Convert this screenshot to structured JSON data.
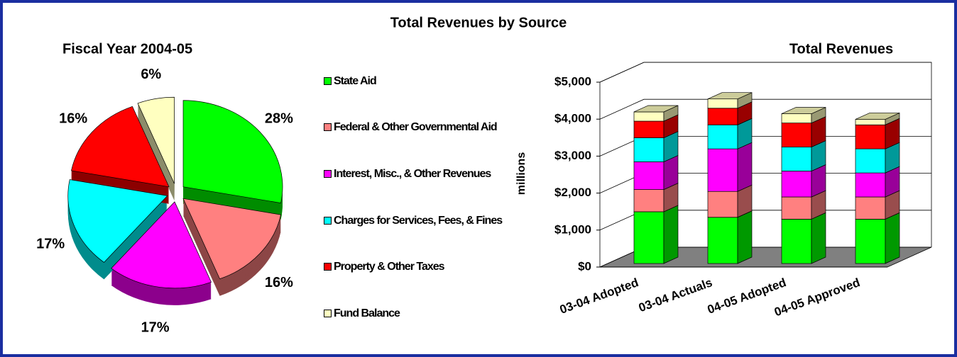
{
  "title": "Total Revenues by Source",
  "chart_data": [
    {
      "type": "pie",
      "title": "Fiscal Year 2004-05",
      "categories": [
        "State Aid",
        "Federal & Other Governmental Aid",
        "Interest, Misc., & Other Revenues",
        "Charges for Services, Fees, & Fines",
        "Property & Other Taxes",
        "Fund Balance"
      ],
      "values": [
        28,
        16,
        17,
        17,
        16,
        6
      ],
      "value_labels": [
        "28%",
        "16%",
        "17%",
        "17%",
        "16%",
        "6%"
      ],
      "colors": [
        "#00ff00",
        "#ff8080",
        "#ff00ff",
        "#00ffff",
        "#ff0000",
        "#ffffc0"
      ]
    },
    {
      "type": "bar",
      "stacked": true,
      "title": "Total Revenues",
      "ylabel": "millions",
      "categories": [
        "03-04 Adopted",
        "03-04 Actuals",
        "04-05 Adopted",
        "04-05 Approved"
      ],
      "series": [
        {
          "color": "#00ff00",
          "values": [
            1400,
            1250,
            1200,
            1200
          ]
        },
        {
          "color": "#ff8080",
          "values": [
            600,
            700,
            600,
            600
          ]
        },
        {
          "color": "#ff00ff",
          "values": [
            750,
            1150,
            700,
            650
          ]
        },
        {
          "color": "#00ffff",
          "values": [
            650,
            650,
            650,
            650
          ]
        },
        {
          "color": "#ff0000",
          "values": [
            450,
            450,
            650,
            650
          ]
        },
        {
          "color": "#ffffc0",
          "values": [
            250,
            250,
            250,
            150
          ]
        }
      ],
      "ylim": [
        0,
        5000
      ],
      "yticks": [
        {
          "value": 0,
          "label": "$0"
        },
        {
          "value": 1000,
          "label": "$1,000"
        },
        {
          "value": 2000,
          "label": "$2,000"
        },
        {
          "value": 3000,
          "label": "$3,000"
        },
        {
          "value": 4000,
          "label": "$4,000"
        },
        {
          "value": 5000,
          "label": "$5,000"
        }
      ],
      "grid": true
    }
  ]
}
